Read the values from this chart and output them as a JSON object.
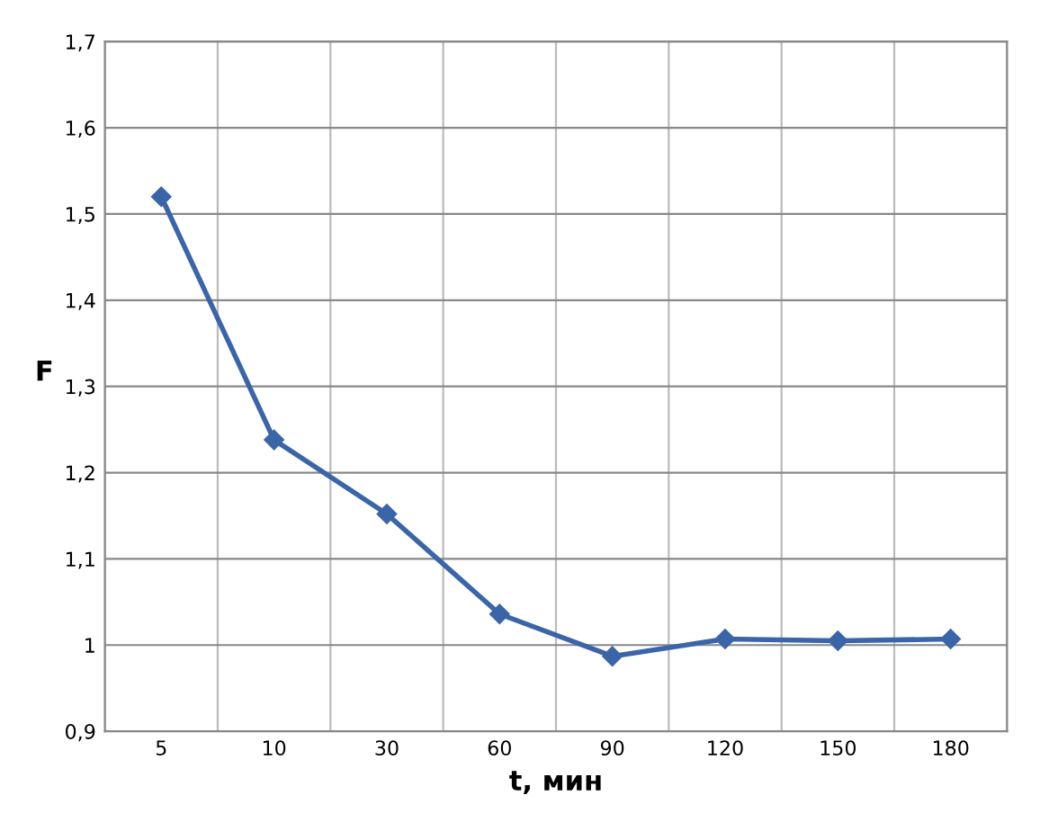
{
  "chart_data": {
    "type": "line",
    "xlabel": "t, мин",
    "ylabel": "F",
    "categories": [
      "5",
      "10",
      "30",
      "60",
      "90",
      "120",
      "150",
      "180"
    ],
    "series": [
      {
        "color": "#3a65a8",
        "values": [
          1.52,
          1.238,
          1.152,
          1.036,
          0.987,
          1.007,
          1.005,
          1.007
        ]
      }
    ],
    "ylim": [
      0.9,
      1.7
    ],
    "yticks": [
      {
        "value": 0.9,
        "label": "0,9"
      },
      {
        "value": 1.0,
        "label": "1"
      },
      {
        "value": 1.1,
        "label": "1,1"
      },
      {
        "value": 1.2,
        "label": "1,2"
      },
      {
        "value": 1.3,
        "label": "1,3"
      },
      {
        "value": 1.4,
        "label": "1,4"
      },
      {
        "value": 1.5,
        "label": "1,5"
      },
      {
        "value": 1.6,
        "label": "1,6"
      },
      {
        "value": 1.7,
        "label": "1,7"
      }
    ],
    "grid": true,
    "marker": "diamond",
    "line_style": "solid"
  }
}
